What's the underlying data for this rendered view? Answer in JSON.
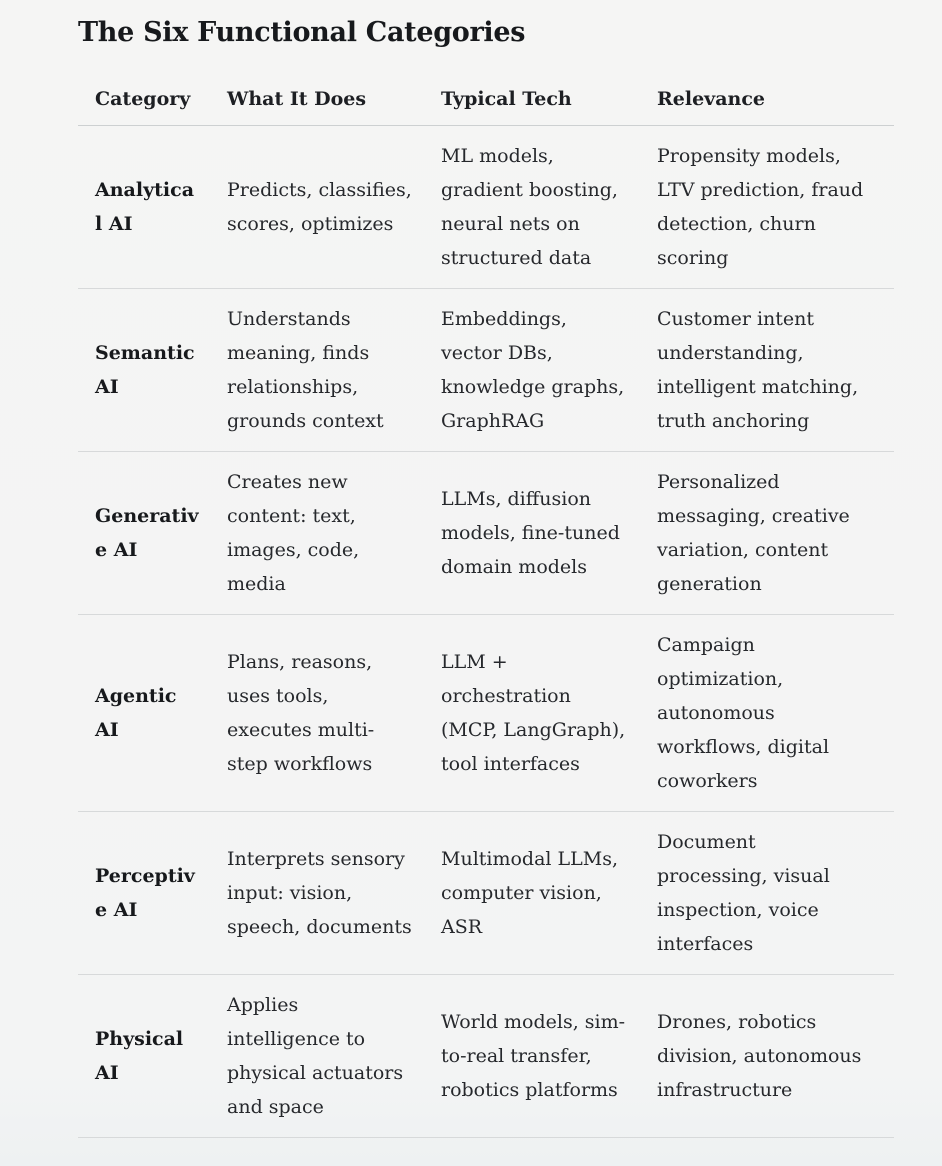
{
  "page": {
    "title": "The Six Functional Categories"
  },
  "colors": {
    "background": "#f4f4f3",
    "heading_text": "#17191c",
    "body_text": "#26282c",
    "divider": "#d7d9da"
  },
  "table": {
    "columns": [
      "Category",
      "What It Does",
      "Typical Tech",
      "Relevance"
    ],
    "rows": [
      {
        "category": "Analytical AI",
        "what_it_does": "Predicts, classifies, scores, optimizes",
        "typical_tech": "ML models, gradient boosting, neural nets on structured data",
        "relevance": "Propensity models, LTV prediction, fraud detection, churn scoring"
      },
      {
        "category": "Semantic AI",
        "what_it_does": "Understands meaning, finds relationships, grounds context",
        "typical_tech": "Embeddings, vector DBs, knowledge graphs, GraphRAG",
        "relevance": "Customer intent understanding, intelligent matching, truth anchoring"
      },
      {
        "category": "Generative AI",
        "what_it_does": "Creates new content: text, images, code, media",
        "typical_tech": "LLMs, diffusion models, fine-tuned domain models",
        "relevance": "Personalized messaging, creative variation, content generation"
      },
      {
        "category": "Agentic AI",
        "what_it_does": "Plans, reasons, uses tools, executes multi-step workflows",
        "typical_tech": "LLM + orchestration (MCP, LangGraph), tool interfaces",
        "relevance": "Campaign optimization, autonomous workflows, digital coworkers"
      },
      {
        "category": "Perceptive AI",
        "what_it_does": "Interprets sensory input: vision, speech, documents",
        "typical_tech": "Multimodal LLMs, computer vision, ASR",
        "relevance": "Document processing, visual inspection, voice interfaces"
      },
      {
        "category": "Physical AI",
        "what_it_does": "Applies intelligence to physical actuators and space",
        "typical_tech": "World models, sim-to-real transfer, robotics platforms",
        "relevance": "Drones, robotics division, autonomous infrastructure"
      }
    ]
  }
}
